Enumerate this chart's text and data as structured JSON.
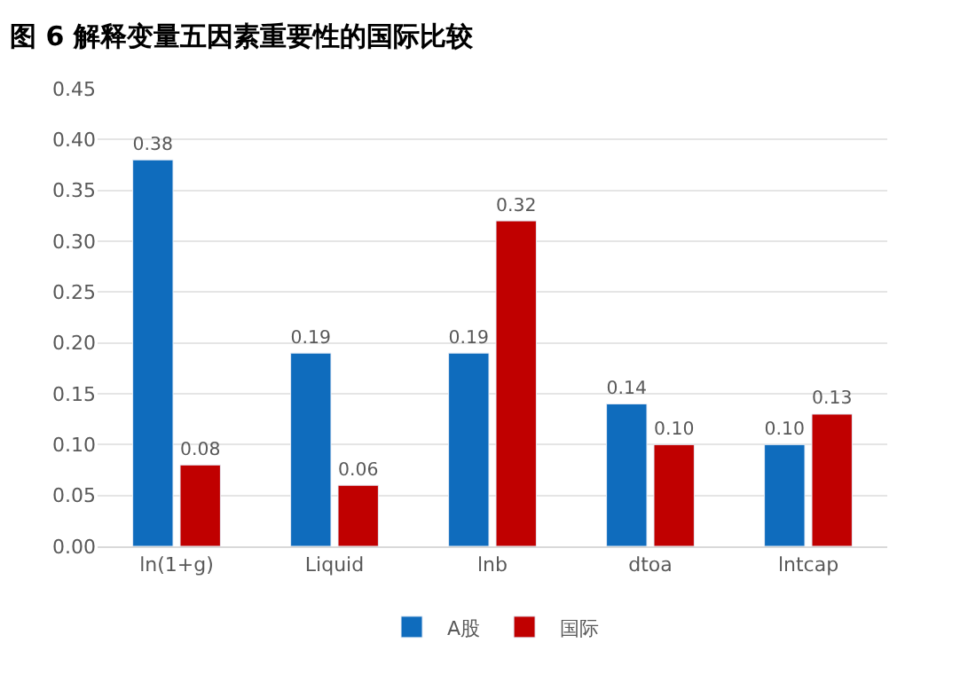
{
  "chart_data": {
    "type": "bar",
    "title": "图 6 解释变量五因素重要性的国际比较",
    "categories": [
      "ln(1+g)",
      "Liquid",
      "lnb",
      "dtoa",
      "lntcap"
    ],
    "series": [
      {
        "name": "A股",
        "color": "#0f6cbd",
        "values": [
          0.38,
          0.19,
          0.19,
          0.14,
          0.1
        ],
        "value_labels": [
          "0.38",
          "0.19",
          "0.19",
          "0.14",
          "0.10"
        ]
      },
      {
        "name": "国际",
        "color": "#c00000",
        "values": [
          0.08,
          0.06,
          0.32,
          0.1,
          0.13
        ],
        "value_labels": [
          "0.08",
          "0.06",
          "0.32",
          "0.10",
          "0.13"
        ]
      }
    ],
    "ylim": [
      0,
      0.45
    ],
    "yticks": [
      {
        "value": 0,
        "label": "0.00"
      },
      {
        "value": 0.05,
        "label": "0.05"
      },
      {
        "value": 0.1,
        "label": "0.10"
      },
      {
        "value": 0.15,
        "label": "0.15"
      },
      {
        "value": 0.2,
        "label": "0.20"
      },
      {
        "value": 0.25,
        "label": "0.25"
      },
      {
        "value": 0.3,
        "label": "0.30"
      },
      {
        "value": 0.35,
        "label": "0.35"
      },
      {
        "value": 0.4,
        "label": "0.40"
      },
      {
        "value": 0.45,
        "label": "0.45"
      }
    ],
    "grid": "y",
    "legend": "bottom"
  }
}
